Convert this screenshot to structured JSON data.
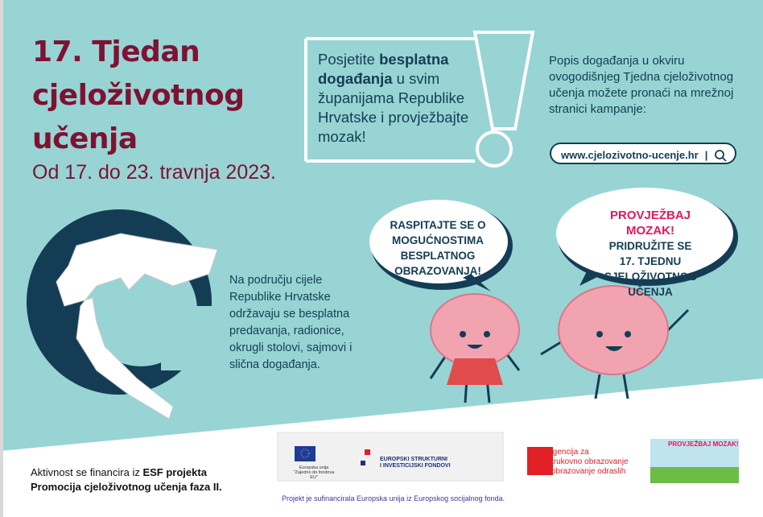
{
  "title": {
    "line1": "17. Tjedan",
    "line2": "cjeloživotnog",
    "line3": "učenja",
    "dates": "Od 17. do 23. travnja 2023."
  },
  "visit": {
    "pre": "Posjetite ",
    "bold": "besplatna događanja",
    "post": " u svim županijama Republike Hrvatske i provježbajte mozak!"
  },
  "info": {
    "text": "Popis događanja u okviru ovogodišnjeg Tjedna cjeloživotnog učenja možete pronaći na mrežnoj stranici kampanje:",
    "url": "www.cjelozivotno-ucenje.hr",
    "separator": "|",
    "search_icon": "search-icon"
  },
  "map_text": "Na području cijele Republike Hrvatske održavaju se besplatna predavanja, radionice, okrugli stolovi, sajmovi i slična događanja.",
  "bubbles": {
    "left": [
      "RASPITAJTE SE O",
      "MOGUĆNOSTIMA",
      "BESPLATNOG",
      "OBRAZOVANJA!"
    ],
    "right_head": "PROVJEŽBAJ MOZAK!",
    "right": [
      "PRIDRUŽITE SE",
      "17. TJEDNU",
      "CJELOŽIVOTNOG UČENJA"
    ]
  },
  "footer": {
    "funding_pre": "Aktivnost se financira iz ",
    "funding_bold1": "ESF projekta",
    "funding_bold2": "Promocija cjeloživotnog učenja faza II.",
    "cofinanced": "Projekt je sufinancirala Europska unija iz Europskog socijalnog fonda.",
    "eu_caption": [
      "Europska unija",
      "\"Zajedno do fondova EU\""
    ],
    "esf_logo": [
      "EUROPSKI STRUKTURNI",
      "I INVESTICIJSKI FONDOVI"
    ],
    "agency": [
      "Agencija za",
      "strukovno obrazovanje",
      "i obrazovanje odraslih"
    ],
    "provjezbaj_logo": "PROVJEŽBAJ MOZAK!"
  },
  "colors": {
    "background": "#98d4d4",
    "title": "#7e1232",
    "navy": "#143d55",
    "pink": "#e2185a",
    "agency_red": "#e31f26",
    "brain": "#f2a3b0"
  }
}
